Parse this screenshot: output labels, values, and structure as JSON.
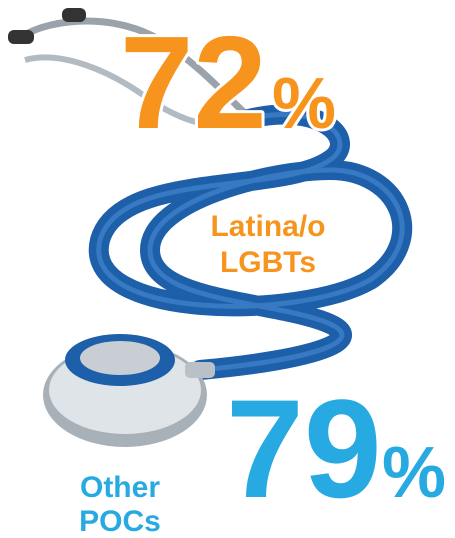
{
  "stats": [
    {
      "value": 72,
      "unit": "%",
      "label_lines": [
        "Latina/o",
        "LGBTs"
      ]
    },
    {
      "value": 79,
      "unit": "%",
      "label_lines": [
        "Other",
        "POCs"
      ]
    }
  ]
}
